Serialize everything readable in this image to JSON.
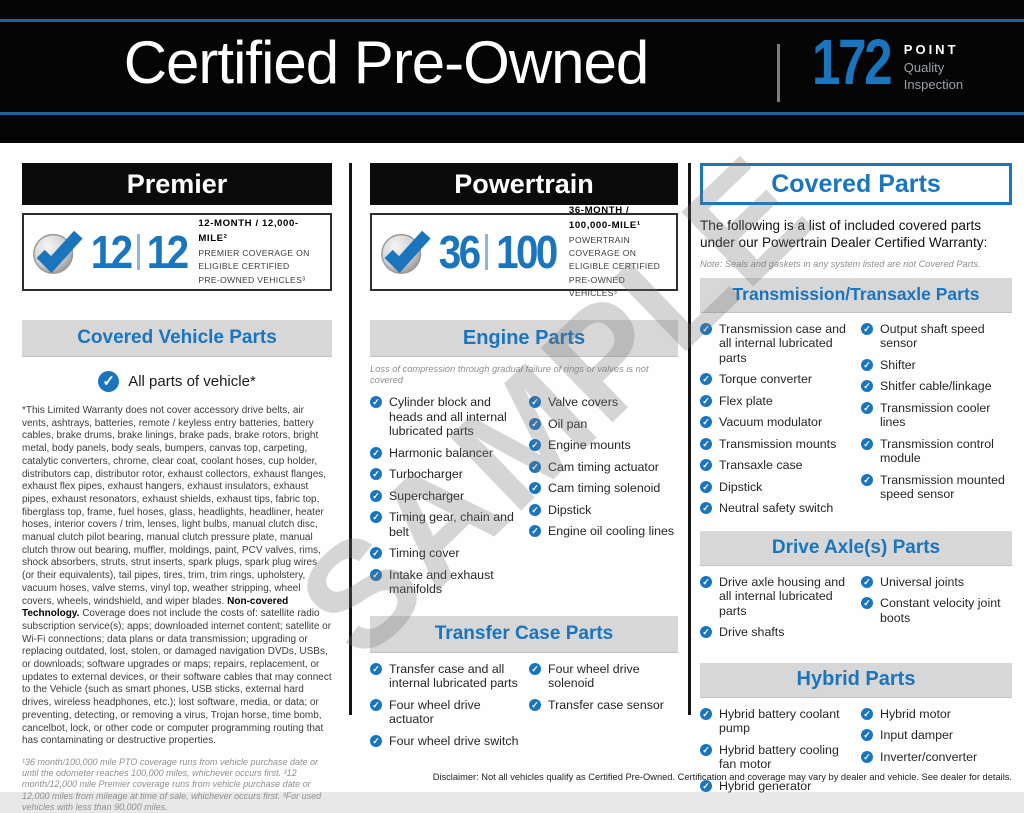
{
  "colors": {
    "accent_blue": "#1b75bc",
    "header_black": "#050505",
    "bar_gray": "#d7d7d7"
  },
  "watermark": "SAMPLE",
  "header": {
    "title": "Certified Pre-Owned",
    "points_number": "172",
    "points_label": "POINT",
    "quality": "Quality",
    "inspection": "Inspection"
  },
  "premier": {
    "title": "Premier",
    "badge": {
      "left_num": "12",
      "right_num": "12",
      "lines": [
        "12-MONTH / 12,000-MILE²",
        "PREMIER COVERAGE ON",
        "ELIGIBLE CERTIFIED",
        "PRE-OWNED VEHICLES³"
      ]
    },
    "section_title": "Covered Vehicle Parts",
    "all_parts": "All parts of vehicle*",
    "check_glyph": "✓",
    "fine_print_part1": "*This Limited Warranty does not cover accessory drive belts, air vents, ashtrays, batteries, remote / keyless entry batteries, battery cables, brake drums, brake linings, brake pads, brake rotors, bright metal, body panels, body seals, bumpers, canvas top, carpeting, catalytic converters, chrome, clear coat, coolant hoses, cup holder, distributors cap, distributor rotor, exhaust collectors, exhaust flanges, exhaust flex pipes, exhaust hangers, exhaust insulators, exhaust pipes, exhaust resonators, exhaust shields, exhaust tips, fabric top, fiberglass top, frame, fuel hoses, glass, headlights, headliner, heater hoses, interior covers / trim, lenses, light bulbs, manual clutch disc, manual clutch pilot bearing, manual clutch pressure plate, manual clutch throw out bearing, muffler, moldings, paint, PCV valves, rims, shock absorbers, struts, strut inserts, spark plugs, spark plug wires (or their equivalents), tail pipes, tires, trim, trim rings, upholstery, vacuum hoses, valve stems, vinyl top, weather stripping, wheel covers, wheels, windshield, and wiper blades. ",
    "fine_print_bold": "Non-covered Technology.",
    "fine_print_part2": " Coverage does not include the costs of: satellite radio subscription service(s); apps; downloaded internet content; satellite or Wi-Fi connections; data plans or data transmission; upgrading or replacing outdated, lost, stolen, or damaged navigation DVDs, USBs, or downloads; software upgrades or maps; repairs, replacement, or updates to external devices, or their software cables that may connect to the Vehicle (such as smart phones, USB sticks, external hard drives, wireless headphones, etc.); lost software, media, or data; or preventing, detecting, or removing a virus, Trojan horse, time bomb, cancelbot, lock, or other code or computer programming routing that has contaminating or destructive properties.",
    "footnotes": "¹36 month/100,000 mile PTO coverage runs from vehicle purchase date or until the odometer reaches 100,000 miles, whichever occurs first. ²12 month/12,000 mile Premier coverage runs from vehicle purchase date or 12,000 miles from mileage at time of sale, whichever occurs first. ³For used vehicles with less than 90,000 miles."
  },
  "powertrain": {
    "title": "Powertrain",
    "badge": {
      "left_num": "36",
      "right_num": "100",
      "lines": [
        "36-MONTH / 100,000-MILE¹",
        "POWERTRAIN COVERAGE ON",
        "ELIGIBLE CERTIFIED",
        "PRE-OWNED VEHICLES³"
      ]
    },
    "engine": {
      "title": "Engine Parts",
      "note": "Loss of compression through gradual failure of rings or valves is not covered",
      "left": [
        "Cylinder block and heads and all internal lubricated parts",
        "Harmonic balancer",
        "Turbocharger",
        "Supercharger",
        "Timing gear, chain and belt",
        "Timing cover",
        "Intake and exhaust manifolds"
      ],
      "right": [
        "Valve covers",
        "Oil pan",
        "Engine mounts",
        "Cam timing actuator",
        "Cam timing solenoid",
        "Dipstick",
        "Engine oil cooling lines"
      ]
    },
    "transfer": {
      "title": "Transfer Case Parts",
      "left": [
        "Transfer case and all internal lubricated parts",
        "Four wheel drive actuator",
        "Four wheel drive switch"
      ],
      "right": [
        "Four wheel drive solenoid",
        "Transfer case sensor"
      ]
    }
  },
  "covered": {
    "title": "Covered Parts",
    "intro": "The following is a list of included covered parts under our Powertrain Dealer Certified Warranty:",
    "note": "Note: Seals and gaskets in any system listed are not Covered Parts.",
    "transmission": {
      "title": "Transmission/Transaxle Parts",
      "left": [
        "Transmission case and all internal lubricated parts",
        "Torque converter",
        "Flex plate",
        "Vacuum modulator",
        "Transmission mounts",
        "Transaxle case",
        "Dipstick",
        "Neutral safety switch"
      ],
      "right": [
        "Output shaft speed sensor",
        "Shifter",
        "Shitfer cable/linkage",
        "Transmission cooler lines",
        "Transmission control module",
        "Transmission mounted speed sensor"
      ]
    },
    "drive_axle": {
      "title": "Drive Axle(s) Parts",
      "left": [
        "Drive axle housing and all internal lubricated parts",
        "Drive shafts"
      ],
      "right": [
        "Universal joints",
        "Constant velocity joint boots"
      ]
    },
    "hybrid": {
      "title": "Hybrid Parts",
      "left": [
        "Hybrid battery coolant pump",
        "Hybrid battery cooling fan motor",
        "Hybrid generator"
      ],
      "right": [
        "Hybrid motor",
        "Input damper",
        "Inverter/converter"
      ]
    }
  },
  "disclaimer": "Disclaimer: Not all vehicles qualify as Certified Pre-Owned. Certification and coverage may vary by dealer and vehicle. See dealer for details."
}
